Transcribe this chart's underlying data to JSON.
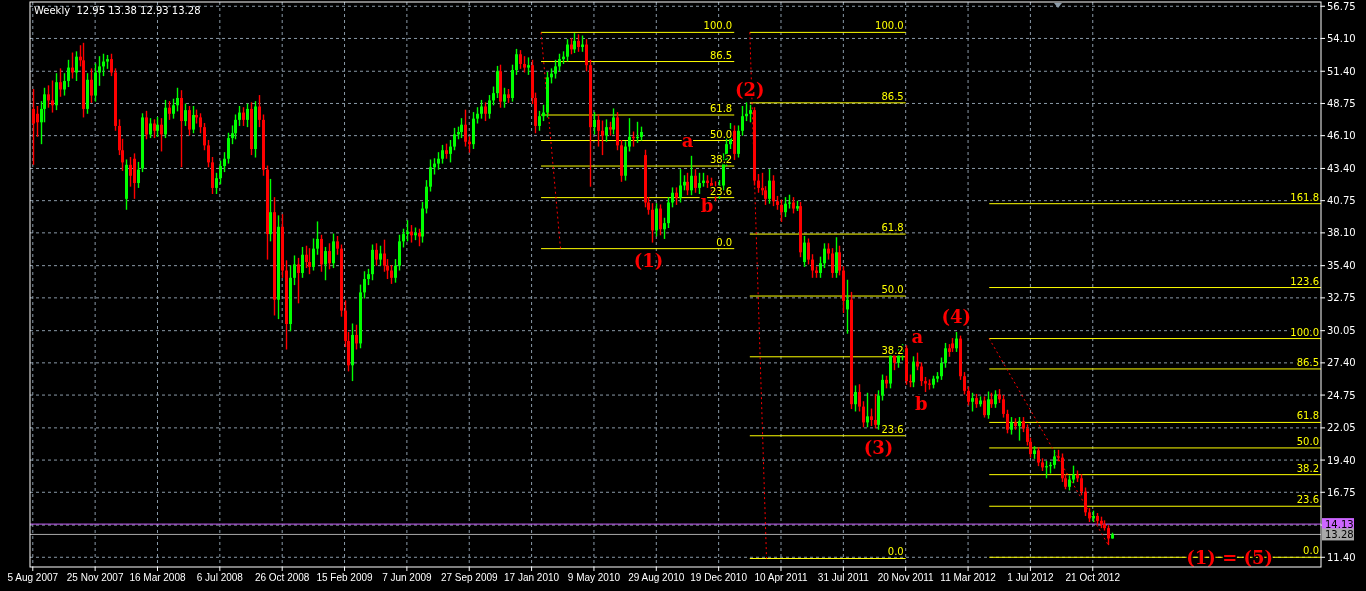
{
  "chart_data": {
    "type": "candlestick",
    "title": "Weekly  12.95 13.38 12.93 13.28",
    "x": [
      "2007-08-05",
      "2007-08-12",
      "2007-08-19",
      "2007-08-26",
      "2007-09-02",
      "2007-09-09",
      "2007-09-16",
      "2007-09-23",
      "2007-09-30",
      "2007-10-07",
      "2007-10-14",
      "2007-10-21",
      "2007-10-28",
      "2007-11-04",
      "2007-11-11",
      "2007-11-18",
      "2007-11-25",
      "2007-12-02",
      "2007-12-09",
      "2007-12-16",
      "2007-12-23",
      "2007-12-30",
      "2008-01-06",
      "2008-01-13",
      "2008-01-20",
      "2008-01-27",
      "2008-02-03",
      "2008-02-10",
      "2008-02-17",
      "2008-02-24",
      "2008-03-02",
      "2008-03-09",
      "2008-03-16",
      "2008-03-23",
      "2008-03-30",
      "2008-04-06",
      "2008-04-13",
      "2008-04-20",
      "2008-04-27",
      "2008-05-04",
      "2008-05-11",
      "2008-05-18",
      "2008-05-25",
      "2008-06-01",
      "2008-06-08",
      "2008-06-15",
      "2008-06-22",
      "2008-06-29",
      "2008-07-06",
      "2008-07-13",
      "2008-07-20",
      "2008-07-27",
      "2008-08-03",
      "2008-08-10",
      "2008-08-17",
      "2008-08-24",
      "2008-08-31",
      "2008-09-07",
      "2008-09-14",
      "2008-09-21",
      "2008-09-28",
      "2008-10-05",
      "2008-10-12",
      "2008-10-19",
      "2008-10-26",
      "2008-11-02",
      "2008-11-09",
      "2008-11-16",
      "2008-11-23",
      "2008-11-30",
      "2008-12-07",
      "2008-12-14",
      "2008-12-21",
      "2008-12-28",
      "2009-01-04",
      "2009-01-11",
      "2009-01-18",
      "2009-01-25",
      "2009-02-01",
      "2009-02-08",
      "2009-02-15",
      "2009-02-22",
      "2009-03-01",
      "2009-03-08",
      "2009-03-15",
      "2009-03-22",
      "2009-03-29",
      "2009-04-05",
      "2009-04-12",
      "2009-04-19",
      "2009-04-26",
      "2009-05-03",
      "2009-05-10",
      "2009-05-17",
      "2009-05-24",
      "2009-05-31",
      "2009-06-07",
      "2009-06-14",
      "2009-06-21",
      "2009-06-28",
      "2009-07-05",
      "2009-07-12",
      "2009-07-19",
      "2009-07-26",
      "2009-08-02",
      "2009-08-09",
      "2009-08-16",
      "2009-08-23",
      "2009-08-30",
      "2009-09-06",
      "2009-09-13",
      "2009-09-20",
      "2009-09-27",
      "2009-10-04",
      "2009-10-11",
      "2009-10-18",
      "2009-10-25",
      "2009-11-01",
      "2009-11-08",
      "2009-11-15",
      "2009-11-22",
      "2009-11-29",
      "2009-12-06",
      "2009-12-13",
      "2009-12-20",
      "2009-12-27",
      "2010-01-03",
      "2010-01-10",
      "2010-01-17",
      "2010-01-24",
      "2010-01-31",
      "2010-02-07",
      "2010-02-14",
      "2010-02-21",
      "2010-02-28",
      "2010-03-07",
      "2010-03-14",
      "2010-03-21",
      "2010-03-28",
      "2010-04-04",
      "2010-04-11",
      "2010-04-18",
      "2010-04-25",
      "2010-05-02",
      "2010-05-09",
      "2010-05-16",
      "2010-05-23",
      "2010-05-30",
      "2010-06-06",
      "2010-06-13",
      "2010-06-20",
      "2010-06-27",
      "2010-07-04",
      "2010-07-11",
      "2010-07-18",
      "2010-07-25",
      "2010-08-01",
      "2010-08-08",
      "2010-08-15",
      "2010-08-22",
      "2010-08-29",
      "2010-09-05",
      "2010-09-12",
      "2010-09-19",
      "2010-09-26",
      "2010-10-03",
      "2010-10-10",
      "2010-10-17",
      "2010-10-24",
      "2010-10-31",
      "2010-11-07",
      "2010-11-14",
      "2010-11-21",
      "2010-11-28",
      "2010-12-05",
      "2010-12-12",
      "2010-12-19",
      "2010-12-26",
      "2011-01-02",
      "2011-01-09",
      "2011-01-16",
      "2011-01-23",
      "2011-01-30",
      "2011-02-06",
      "2011-02-13",
      "2011-02-20",
      "2011-02-27",
      "2011-03-06",
      "2011-03-13",
      "2011-03-20",
      "2011-03-27",
      "2011-04-03",
      "2011-04-10",
      "2011-04-17",
      "2011-04-24",
      "2011-05-01",
      "2011-05-08",
      "2011-05-15",
      "2011-05-22",
      "2011-05-29",
      "2011-06-05",
      "2011-06-12",
      "2011-06-19",
      "2011-06-26",
      "2011-07-03",
      "2011-07-10",
      "2011-07-17",
      "2011-07-24",
      "2011-07-31",
      "2011-08-07",
      "2011-08-14",
      "2011-08-21",
      "2011-08-28",
      "2011-09-04",
      "2011-09-11",
      "2011-09-18",
      "2011-09-25",
      "2011-10-02",
      "2011-10-09",
      "2011-10-16",
      "2011-10-23",
      "2011-10-30",
      "2011-11-06",
      "2011-11-13",
      "2011-11-20",
      "2011-11-27",
      "2011-12-04",
      "2011-12-11",
      "2011-12-18",
      "2011-12-25",
      "2012-01-01",
      "2012-01-08",
      "2012-01-15",
      "2012-01-22",
      "2012-01-29",
      "2012-02-05",
      "2012-02-12",
      "2012-02-19",
      "2012-02-26",
      "2012-03-04",
      "2012-03-11",
      "2012-03-18",
      "2012-03-25",
      "2012-04-01",
      "2012-04-08",
      "2012-04-15",
      "2012-04-22",
      "2012-04-29",
      "2012-05-06",
      "2012-05-13",
      "2012-05-20",
      "2012-05-27",
      "2012-06-03",
      "2012-06-10",
      "2012-06-17",
      "2012-06-24",
      "2012-07-01",
      "2012-07-08",
      "2012-07-15",
      "2012-07-22",
      "2012-07-29",
      "2012-08-05",
      "2012-08-12",
      "2012-08-19",
      "2012-08-26",
      "2012-09-02",
      "2012-09-09",
      "2012-09-16",
      "2012-09-23",
      "2012-09-30",
      "2012-10-07",
      "2012-10-14",
      "2012-10-21",
      "2012-10-28",
      "2012-11-04",
      "2012-11-11",
      "2012-11-18",
      "2012-11-25"
    ],
    "ohlc": [
      [
        48.3,
        49.9,
        43.7,
        47.1
      ],
      [
        47.9,
        48.5,
        46.0,
        47.2
      ],
      [
        47.2,
        48.9,
        45.4,
        48.3
      ],
      [
        48.3,
        50.0,
        47.2,
        49.5
      ],
      [
        49.5,
        50.2,
        48.4,
        49.0
      ],
      [
        49.0,
        50.6,
        48.0,
        48.6
      ],
      [
        48.6,
        51.2,
        48.2,
        50.5
      ],
      [
        50.5,
        51.6,
        49.3,
        49.9
      ],
      [
        49.9,
        51.2,
        49.4,
        50.6
      ],
      [
        50.6,
        52.3,
        50.1,
        51.7
      ],
      [
        51.7,
        52.9,
        50.8,
        51.3
      ],
      [
        51.3,
        53.0,
        50.6,
        52.6
      ],
      [
        52.6,
        53.5,
        51.8,
        52.3
      ],
      [
        52.3,
        53.7,
        47.6,
        48.3
      ],
      [
        48.3,
        51.2,
        47.9,
        50.7
      ],
      [
        50.7,
        51.6,
        48.8,
        49.4
      ],
      [
        49.4,
        52.0,
        48.9,
        51.3
      ],
      [
        51.3,
        52.6,
        50.2,
        51.8
      ],
      [
        51.8,
        52.8,
        51.0,
        52.2
      ],
      [
        52.2,
        52.7,
        51.6,
        52.4
      ],
      [
        52.4,
        52.8,
        51.0,
        51.3
      ],
      [
        51.3,
        51.6,
        46.5,
        46.9
      ],
      [
        46.9,
        47.4,
        44.5,
        44.9
      ],
      [
        44.9,
        45.8,
        43.2,
        43.9
      ],
      [
        40.9,
        44.1,
        40.0,
        43.7
      ],
      [
        43.7,
        44.3,
        41.9,
        42.8
      ],
      [
        44.2,
        44.6,
        40.9,
        42.2
      ],
      [
        42.2,
        43.9,
        41.8,
        43.3
      ],
      [
        43.4,
        47.9,
        43.1,
        47.6
      ],
      [
        47.6,
        48.1,
        45.8,
        46.2
      ],
      [
        46.2,
        47.5,
        45.9,
        47.1
      ],
      [
        47.1,
        47.4,
        45.9,
        46.5
      ],
      [
        46.5,
        47.6,
        46.0,
        47.0
      ],
      [
        47.0,
        47.5,
        44.8,
        46.2
      ],
      [
        46.2,
        49.0,
        45.9,
        48.4
      ],
      [
        48.4,
        48.9,
        47.4,
        47.9
      ],
      [
        47.9,
        49.1,
        47.5,
        48.6
      ],
      [
        48.6,
        50.0,
        48.1,
        49.2
      ],
      [
        49.2,
        49.8,
        43.5,
        47.3
      ],
      [
        47.3,
        48.7,
        46.9,
        48.2
      ],
      [
        48.2,
        48.5,
        46.1,
        46.6
      ],
      [
        46.6,
        48.5,
        46.3,
        47.8
      ],
      [
        47.8,
        48.2,
        47.1,
        47.6
      ],
      [
        47.6,
        47.9,
        46.3,
        46.8
      ],
      [
        46.8,
        47.1,
        44.9,
        45.3
      ],
      [
        45.3,
        45.7,
        43.5,
        43.9
      ],
      [
        43.9,
        44.3,
        41.3,
        41.8
      ],
      [
        41.8,
        43.0,
        41.3,
        42.6
      ],
      [
        42.6,
        44.0,
        42.1,
        43.6
      ],
      [
        43.6,
        44.7,
        43.1,
        44.2
      ],
      [
        44.2,
        46.3,
        43.8,
        45.9
      ],
      [
        45.9,
        46.9,
        45.4,
        46.3
      ],
      [
        46.3,
        47.8,
        45.8,
        47.4
      ],
      [
        47.4,
        48.5,
        46.9,
        48.0
      ],
      [
        48.0,
        48.4,
        46.9,
        47.4
      ],
      [
        47.4,
        48.7,
        46.8,
        48.3
      ],
      [
        48.3,
        48.8,
        44.5,
        45.0
      ],
      [
        45.0,
        48.9,
        44.3,
        48.5
      ],
      [
        48.5,
        49.4,
        46.8,
        47.4
      ],
      [
        47.4,
        47.8,
        42.8,
        43.3
      ],
      [
        43.3,
        43.6,
        35.9,
        38.0
      ],
      [
        38.0,
        42.5,
        37.4,
        39.8
      ],
      [
        39.8,
        41.0,
        31.3,
        32.6
      ],
      [
        32.6,
        39.5,
        31.0,
        38.6
      ],
      [
        38.6,
        39.6,
        34.4,
        35.0
      ],
      [
        35.0,
        35.8,
        28.5,
        30.6
      ],
      [
        30.6,
        35.4,
        30.0,
        34.4
      ],
      [
        34.4,
        36.2,
        33.8,
        35.5
      ],
      [
        35.5,
        36.0,
        32.3,
        34.8
      ],
      [
        34.8,
        36.9,
        34.4,
        36.3
      ],
      [
        36.3,
        37.0,
        35.2,
        35.7
      ],
      [
        35.7,
        36.8,
        34.7,
        35.3
      ],
      [
        35.3,
        37.6,
        35.0,
        36.8
      ],
      [
        36.8,
        39.0,
        36.3,
        37.6
      ],
      [
        37.6,
        37.9,
        34.9,
        35.5
      ],
      [
        35.5,
        36.9,
        34.2,
        36.6
      ],
      [
        36.6,
        37.2,
        35.1,
        35.6
      ],
      [
        35.6,
        38.0,
        35.2,
        37.4
      ],
      [
        37.4,
        37.8,
        36.3,
        36.8
      ],
      [
        36.8,
        37.1,
        31.2,
        31.7
      ],
      [
        31.7,
        32.5,
        28.7,
        29.2
      ],
      [
        29.2,
        29.9,
        26.7,
        27.2
      ],
      [
        27.2,
        30.6,
        25.9,
        29.7
      ],
      [
        29.7,
        30.5,
        28.5,
        29.0
      ],
      [
        29.0,
        33.8,
        28.6,
        33.2
      ],
      [
        33.2,
        34.9,
        32.7,
        34.3
      ],
      [
        34.3,
        35.1,
        33.8,
        34.7
      ],
      [
        34.7,
        37.1,
        34.2,
        36.7
      ],
      [
        36.7,
        37.2,
        35.4,
        35.9
      ],
      [
        35.9,
        37.0,
        35.4,
        36.4
      ],
      [
        36.4,
        37.5,
        34.9,
        35.4
      ],
      [
        35.4,
        35.9,
        34.3,
        35.0
      ],
      [
        35.0,
        35.4,
        33.9,
        34.4
      ],
      [
        34.4,
        35.9,
        34.0,
        35.4
      ],
      [
        35.4,
        37.9,
        35.0,
        37.4
      ],
      [
        37.4,
        38.4,
        36.9,
        38.0
      ],
      [
        38.0,
        39.1,
        37.4,
        38.2
      ],
      [
        38.2,
        38.7,
        37.3,
        37.9
      ],
      [
        37.9,
        38.5,
        37.5,
        38.1
      ],
      [
        38.1,
        38.4,
        37.0,
        37.8
      ],
      [
        37.8,
        40.6,
        37.3,
        40.1
      ],
      [
        40.1,
        42.4,
        39.7,
        41.9
      ],
      [
        41.9,
        44.1,
        41.5,
        43.5
      ],
      [
        43.5,
        44.2,
        42.9,
        43.8
      ],
      [
        43.8,
        44.7,
        43.3,
        44.2
      ],
      [
        44.2,
        45.3,
        43.8,
        44.9
      ],
      [
        44.9,
        45.4,
        44.2,
        44.6
      ],
      [
        44.6,
        45.7,
        43.9,
        45.2
      ],
      [
        45.2,
        46.7,
        44.9,
        46.2
      ],
      [
        46.2,
        46.8,
        45.8,
        46.4
      ],
      [
        46.4,
        47.5,
        45.9,
        47.0
      ],
      [
        47.0,
        48.2,
        45.2,
        45.6
      ],
      [
        45.6,
        46.0,
        44.7,
        45.4
      ],
      [
        45.4,
        48.0,
        45.0,
        47.5
      ],
      [
        47.5,
        48.4,
        47.1,
        47.9
      ],
      [
        47.9,
        49.0,
        47.5,
        48.5
      ],
      [
        48.5,
        48.8,
        47.3,
        47.9
      ],
      [
        47.9,
        49.4,
        47.5,
        49.0
      ],
      [
        49.0,
        50.1,
        48.6,
        49.6
      ],
      [
        49.6,
        51.8,
        49.2,
        51.4
      ],
      [
        51.4,
        51.9,
        48.4,
        48.9
      ],
      [
        48.9,
        50.0,
        48.4,
        49.5
      ],
      [
        49.5,
        49.9,
        48.8,
        49.2
      ],
      [
        49.2,
        51.9,
        48.9,
        51.5
      ],
      [
        51.5,
        53.2,
        51.1,
        52.8
      ],
      [
        52.8,
        53.1,
        51.6,
        52.0
      ],
      [
        52.0,
        52.6,
        51.3,
        51.7
      ],
      [
        51.7,
        52.5,
        51.1,
        51.9
      ],
      [
        51.9,
        52.3,
        48.7,
        49.2
      ],
      [
        49.2,
        49.6,
        46.3,
        46.9
      ],
      [
        46.9,
        48.1,
        46.5,
        47.7
      ],
      [
        47.7,
        48.6,
        47.3,
        48.0
      ],
      [
        48.0,
        51.3,
        47.6,
        50.9
      ],
      [
        50.9,
        51.6,
        50.4,
        51.2
      ],
      [
        51.2,
        52.3,
        50.8,
        51.8
      ],
      [
        51.8,
        52.8,
        51.4,
        52.4
      ],
      [
        52.4,
        53.0,
        52.0,
        52.6
      ],
      [
        52.6,
        54.0,
        52.2,
        53.6
      ],
      [
        53.6,
        54.1,
        52.8,
        53.2
      ],
      [
        53.2,
        54.5,
        52.9,
        53.9
      ],
      [
        53.9,
        54.4,
        53.0,
        53.4
      ],
      [
        53.4,
        54.3,
        53.0,
        53.6
      ],
      [
        53.6,
        54.0,
        51.4,
        51.9
      ],
      [
        51.9,
        52.3,
        41.9,
        46.8
      ],
      [
        46.8,
        48.0,
        46.2,
        47.4
      ],
      [
        47.4,
        47.8,
        45.2,
        46.5
      ],
      [
        46.5,
        47.3,
        44.5,
        46.1
      ],
      [
        46.1,
        47.4,
        45.6,
        46.8
      ],
      [
        46.8,
        47.2,
        46.1,
        46.6
      ],
      [
        46.6,
        48.3,
        46.2,
        47.6
      ],
      [
        47.6,
        48.0,
        44.9,
        45.3
      ],
      [
        45.3,
        45.7,
        42.3,
        42.8
      ],
      [
        42.8,
        45.6,
        42.4,
        45.2
      ],
      [
        45.2,
        47.5,
        44.8,
        46.0
      ],
      [
        46.0,
        46.4,
        45.2,
        45.9
      ],
      [
        45.9,
        47.2,
        45.5,
        46.0
      ],
      [
        46.0,
        46.8,
        45.7,
        46.4
      ],
      [
        44.5,
        44.9,
        40.2,
        40.6
      ],
      [
        40.6,
        41.0,
        39.6,
        40.0
      ],
      [
        40.0,
        40.5,
        37.3,
        38.3
      ],
      [
        38.3,
        40.5,
        37.8,
        40.1
      ],
      [
        40.1,
        40.4,
        37.9,
        38.4
      ],
      [
        38.4,
        39.3,
        37.6,
        38.9
      ],
      [
        38.9,
        41.0,
        38.5,
        40.6
      ],
      [
        40.6,
        41.8,
        40.2,
        41.4
      ],
      [
        41.4,
        41.8,
        40.4,
        41.0
      ],
      [
        41.0,
        43.3,
        40.6,
        42.0
      ],
      [
        42.0,
        42.8,
        41.6,
        42.3
      ],
      [
        42.3,
        43.0,
        41.2,
        41.6
      ],
      [
        41.6,
        44.4,
        41.2,
        42.8
      ],
      [
        42.8,
        43.3,
        41.4,
        41.8
      ],
      [
        41.8,
        43.0,
        41.3,
        42.2
      ],
      [
        42.2,
        43.0,
        41.9,
        42.4
      ],
      [
        42.4,
        42.8,
        41.8,
        42.2
      ],
      [
        42.2,
        42.6,
        41.4,
        41.8
      ],
      [
        41.8,
        42.3,
        40.7,
        41.3
      ],
      [
        41.3,
        42.4,
        40.9,
        42.0
      ],
      [
        42.0,
        44.6,
        41.6,
        44.0
      ],
      [
        44.0,
        45.9,
        43.6,
        45.4
      ],
      [
        45.4,
        47.1,
        45.0,
        46.5
      ],
      [
        46.5,
        46.9,
        44.1,
        44.6
      ],
      [
        44.6,
        46.9,
        44.3,
        46.5
      ],
      [
        46.5,
        48.5,
        46.1,
        47.7
      ],
      [
        47.7,
        48.8,
        47.3,
        47.9
      ],
      [
        47.9,
        48.6,
        47.2,
        48.2
      ],
      [
        48.2,
        48.4,
        42.0,
        42.4
      ],
      [
        42.4,
        42.9,
        41.4,
        41.8
      ],
      [
        41.8,
        43.0,
        41.2,
        41.6
      ],
      [
        41.6,
        41.9,
        40.4,
        40.9
      ],
      [
        40.9,
        43.3,
        40.5,
        42.4
      ],
      [
        42.4,
        42.8,
        40.3,
        40.7
      ],
      [
        40.7,
        41.1,
        40.0,
        40.4
      ],
      [
        40.4,
        40.8,
        39.0,
        39.8
      ],
      [
        39.8,
        41.0,
        39.4,
        40.5
      ],
      [
        40.5,
        41.2,
        40.1,
        40.6
      ],
      [
        40.6,
        41.0,
        39.7,
        40.1
      ],
      [
        40.1,
        40.7,
        39.9,
        40.3
      ],
      [
        40.3,
        40.6,
        36.1,
        36.5
      ],
      [
        35.7,
        37.8,
        35.3,
        37.3
      ],
      [
        37.3,
        37.6,
        35.5,
        35.9
      ],
      [
        35.9,
        36.3,
        34.4,
        35.0
      ],
      [
        35.0,
        35.3,
        34.4,
        34.8
      ],
      [
        34.8,
        36.1,
        34.4,
        35.6
      ],
      [
        35.6,
        37.2,
        35.2,
        36.8
      ],
      [
        36.8,
        37.2,
        35.9,
        36.4
      ],
      [
        36.4,
        36.8,
        34.4,
        34.8
      ],
      [
        34.8,
        37.7,
        34.4,
        36.5
      ],
      [
        36.5,
        37.0,
        34.6,
        35.0
      ],
      [
        35.0,
        35.3,
        31.5,
        32.5
      ],
      [
        31.8,
        34.2,
        29.8,
        32.6
      ],
      [
        32.6,
        33.2,
        23.6,
        24.0
      ],
      [
        24.0,
        25.5,
        23.4,
        25.0
      ],
      [
        25.0,
        25.6,
        23.4,
        23.8
      ],
      [
        23.8,
        24.2,
        22.1,
        22.5
      ],
      [
        22.5,
        24.9,
        22.1,
        23.0
      ],
      [
        23.0,
        23.6,
        22.2,
        22.7
      ],
      [
        22.7,
        24.8,
        22.0,
        22.3
      ],
      [
        22.3,
        25.1,
        21.9,
        24.7
      ],
      [
        24.7,
        26.4,
        24.3,
        26.0
      ],
      [
        26.0,
        26.3,
        25.3,
        25.7
      ],
      [
        25.7,
        28.0,
        25.3,
        28.0
      ],
      [
        28.0,
        28.0,
        26.8,
        27.4
      ],
      [
        27.4,
        28.5,
        27.0,
        28.1
      ],
      [
        28.1,
        28.9,
        27.6,
        28.6
      ],
      [
        28.6,
        28.8,
        25.6,
        25.9
      ],
      [
        25.9,
        26.4,
        25.4,
        25.8
      ],
      [
        25.8,
        27.9,
        25.4,
        27.5
      ],
      [
        27.5,
        28.2,
        26.8,
        27.1
      ],
      [
        27.1,
        27.4,
        25.5,
        25.9
      ],
      [
        25.9,
        26.2,
        25.0,
        25.7
      ],
      [
        25.7,
        26.0,
        25.2,
        25.6
      ],
      [
        25.6,
        26.3,
        25.3,
        26.1
      ],
      [
        26.1,
        26.6,
        25.8,
        26.3
      ],
      [
        26.3,
        27.8,
        26.0,
        27.4
      ],
      [
        27.4,
        29.0,
        27.0,
        28.6
      ],
      [
        28.6,
        28.9,
        27.9,
        28.3
      ],
      [
        29.0,
        29.4,
        28.3,
        28.6
      ],
      [
        28.6,
        29.9,
        28.3,
        29.4
      ],
      [
        29.4,
        29.6,
        26.0,
        26.3
      ],
      [
        26.3,
        26.6,
        24.8,
        25.1
      ],
      [
        25.1,
        25.4,
        23.9,
        24.2
      ],
      [
        24.2,
        24.9,
        23.4,
        24.5
      ],
      [
        24.5,
        24.8,
        23.7,
        24.0
      ],
      [
        24.0,
        24.6,
        23.8,
        24.3
      ],
      [
        24.3,
        24.6,
        22.9,
        23.1
      ],
      [
        23.1,
        25.0,
        22.8,
        24.4
      ],
      [
        24.4,
        24.9,
        23.7,
        24.0
      ],
      [
        24.0,
        25.1,
        23.7,
        24.8
      ],
      [
        24.8,
        25.2,
        24.1,
        24.4
      ],
      [
        24.4,
        24.7,
        22.9,
        23.2
      ],
      [
        23.2,
        23.5,
        21.6,
        21.9
      ],
      [
        21.9,
        22.9,
        21.5,
        22.5
      ],
      [
        22.5,
        22.8,
        21.9,
        22.2
      ],
      [
        22.2,
        22.9,
        21.0,
        22.6
      ],
      [
        22.6,
        22.9,
        21.7,
        22.0
      ],
      [
        22.0,
        22.3,
        20.6,
        20.9
      ],
      [
        20.9,
        21.2,
        19.6,
        19.9
      ],
      [
        19.9,
        20.5,
        19.5,
        20.2
      ],
      [
        20.2,
        20.4,
        18.9,
        19.2
      ],
      [
        19.2,
        19.5,
        18.5,
        18.8
      ],
      [
        18.8,
        19.3,
        17.9,
        18.9
      ],
      [
        18.9,
        19.2,
        18.3,
        19.0
      ],
      [
        19.0,
        20.2,
        18.7,
        19.7
      ],
      [
        19.7,
        20.2,
        19.3,
        19.6
      ],
      [
        19.6,
        19.9,
        17.6,
        17.9
      ],
      [
        17.9,
        18.2,
        17.0,
        17.2
      ],
      [
        17.2,
        18.1,
        16.9,
        17.8
      ],
      [
        17.8,
        18.9,
        17.5,
        18.2
      ],
      [
        18.2,
        18.5,
        17.6,
        17.9
      ],
      [
        17.9,
        18.2,
        16.5,
        16.8
      ],
      [
        16.8,
        17.1,
        14.8,
        15.1
      ],
      [
        15.1,
        15.4,
        14.3,
        14.6
      ],
      [
        14.6,
        15.2,
        14.3,
        14.8
      ],
      [
        14.8,
        15.0,
        14.1,
        14.4
      ],
      [
        14.4,
        14.7,
        13.8,
        14.1
      ],
      [
        14.1,
        14.4,
        13.6,
        13.8
      ],
      [
        13.8,
        14.0,
        12.4,
        12.95
      ],
      [
        12.95,
        13.38,
        12.93,
        13.28
      ]
    ],
    "colors": [
      "#ff0000",
      "#ff0000",
      "#00ff00",
      "#00ff00",
      "#ff0000",
      "#ff0000",
      "#00ff00",
      "#ff0000",
      "#00ff00",
      "#00ff00",
      "#ff0000",
      "#00ff00",
      "#ff0000",
      "#ff0000",
      "#00ff00",
      "#ff0000",
      "#00ff00",
      "#00ff00",
      "#00ff00",
      "#00ff00",
      "#ff0000",
      "#ff0000",
      "#ff0000",
      "#ff0000",
      "#00ff00",
      "#ff0000",
      "#ff0000",
      "#00ff00",
      "#00ff00",
      "#ff0000",
      "#00ff00",
      "#ff0000",
      "#00ff00",
      "#ff0000",
      "#00ff00",
      "#ff0000",
      "#00ff00",
      "#00ff00",
      "#ff0000",
      "#00ff00",
      "#ff0000",
      "#00ff00",
      "#ff0000",
      "#ff0000",
      "#ff0000",
      "#ff0000",
      "#ff0000",
      "#00ff00",
      "#00ff00",
      "#00ff00",
      "#00ff00",
      "#00ff00",
      "#00ff00",
      "#00ff00",
      "#ff0000",
      "#00ff00",
      "#ff0000",
      "#00ff00",
      "#ff0000",
      "#ff0000",
      "#ff0000",
      "#00ff00",
      "#ff0000",
      "#00ff00",
      "#ff0000",
      "#ff0000",
      "#00ff00",
      "#00ff00",
      "#ff0000",
      "#00ff00",
      "#ff0000",
      "#ff0000",
      "#00ff00",
      "#00ff00",
      "#ff0000",
      "#00ff00",
      "#ff0000",
      "#00ff00",
      "#ff0000",
      "#ff0000",
      "#ff0000",
      "#ff0000",
      "#00ff00",
      "#ff0000",
      "#00ff00",
      "#00ff00",
      "#00ff00",
      "#00ff00",
      "#ff0000",
      "#00ff00",
      "#ff0000",
      "#ff0000",
      "#ff0000",
      "#00ff00",
      "#00ff00",
      "#00ff00",
      "#00ff00",
      "#ff0000",
      "#00ff00",
      "#ff0000",
      "#00ff00",
      "#00ff00",
      "#00ff00",
      "#00ff00",
      "#00ff00",
      "#00ff00",
      "#ff0000",
      "#00ff00",
      "#00ff00",
      "#00ff00",
      "#00ff00",
      "#ff0000",
      "#ff0000",
      "#00ff00",
      "#00ff00",
      "#00ff00",
      "#ff0000",
      "#00ff00",
      "#00ff00",
      "#00ff00",
      "#ff0000",
      "#00ff00",
      "#ff0000",
      "#00ff00",
      "#00ff00",
      "#ff0000",
      "#ff0000",
      "#00ff00",
      "#ff0000",
      "#ff0000",
      "#00ff00",
      "#00ff00",
      "#00ff00",
      "#00ff00",
      "#00ff00",
      "#00ff00",
      "#00ff00",
      "#00ff00",
      "#ff0000",
      "#00ff00",
      "#ff0000",
      "#00ff00",
      "#ff0000",
      "#ff0000",
      "#00ff00",
      "#ff0000",
      "#ff0000",
      "#00ff00",
      "#ff0000",
      "#00ff00",
      "#ff0000",
      "#ff0000",
      "#00ff00",
      "#00ff00",
      "#ff0000",
      "#00ff00",
      "#00ff00",
      "#ff0000",
      "#ff0000",
      "#ff0000",
      "#00ff00",
      "#ff0000",
      "#00ff00",
      "#00ff00",
      "#00ff00",
      "#ff0000",
      "#00ff00",
      "#00ff00",
      "#ff0000",
      "#00ff00",
      "#ff0000",
      "#00ff00",
      "#00ff00",
      "#ff0000",
      "#ff0000",
      "#ff0000",
      "#00ff00",
      "#00ff00",
      "#00ff00",
      "#00ff00",
      "#ff0000",
      "#00ff00",
      "#00ff00",
      "#00ff00",
      "#00ff00",
      "#ff0000",
      "#ff0000",
      "#ff0000",
      "#ff0000",
      "#00ff00",
      "#ff0000",
      "#ff0000",
      "#ff0000",
      "#00ff00",
      "#00ff00",
      "#ff0000",
      "#00ff00",
      "#ff0000",
      "#00ff00",
      "#ff0000",
      "#ff0000",
      "#ff0000",
      "#00ff00",
      "#00ff00",
      "#ff0000",
      "#ff0000",
      "#00ff00",
      "#ff0000",
      "#ff0000",
      "#00ff00",
      "#ff0000",
      "#00ff00",
      "#ff0000",
      "#ff0000",
      "#00ff00",
      "#ff0000",
      "#ff0000",
      "#00ff00",
      "#00ff00",
      "#ff0000",
      "#00ff00",
      "#ff0000",
      "#00ff00",
      "#00ff00",
      "#ff0000",
      "#ff0000",
      "#00ff00",
      "#ff0000",
      "#ff0000",
      "#ff0000",
      "#ff0000",
      "#00ff00",
      "#00ff00",
      "#00ff00",
      "#00ff00",
      "#ff0000",
      "#ff0000",
      "#00ff00",
      "#ff0000",
      "#ff0000",
      "#ff0000",
      "#00ff00",
      "#ff0000",
      "#00ff00",
      "#ff0000",
      "#00ff00",
      "#ff0000",
      "#00ff00",
      "#ff0000",
      "#ff0000",
      "#ff0000",
      "#00ff00",
      "#ff0000",
      "#00ff00",
      "#ff0000",
      "#ff0000",
      "#ff0000",
      "#00ff00",
      "#ff0000",
      "#ff0000",
      "#00ff00",
      "#00ff00",
      "#00ff00",
      "#ff0000",
      "#ff0000",
      "#ff0000",
      "#00ff00",
      "#00ff00",
      "#ff0000",
      "#ff0000",
      "#ff0000",
      "#ff0000",
      "#00ff00",
      "#ff0000",
      "#ff0000",
      "#ff0000",
      "#ff0000",
      "#00ff00"
    ],
    "xlim": [
      "2007-07-31",
      "2013-12-05"
    ],
    "xticks": [
      {
        "value": "2007-08-05",
        "label": "5 Aug 2007"
      },
      {
        "value": "2007-11-25",
        "label": "25 Nov 2007"
      },
      {
        "value": "2008-03-16",
        "label": "16 Mar 2008"
      },
      {
        "value": "2008-07-06",
        "label": "6 Jul 2008"
      },
      {
        "value": "2008-10-26",
        "label": "26 Oct 2008"
      },
      {
        "value": "2009-02-15",
        "label": "15 Feb 2009"
      },
      {
        "value": "2009-06-07",
        "label": "7 Jun 2009"
      },
      {
        "value": "2009-09-27",
        "label": "27 Sep 2009"
      },
      {
        "value": "2010-01-17",
        "label": "17 Jan 2010"
      },
      {
        "value": "2010-05-09",
        "label": "9 May 2010"
      },
      {
        "value": "2010-08-29",
        "label": "29 Aug 2010"
      },
      {
        "value": "2010-12-19",
        "label": "19 Dec 2010"
      },
      {
        "value": "2011-04-10",
        "label": "10 Apr 2011"
      },
      {
        "value": "2011-07-31",
        "label": "31 Jul 2011"
      },
      {
        "value": "2011-11-20",
        "label": "20 Nov 2011"
      },
      {
        "value": "2012-03-11",
        "label": "11 Mar 2012"
      },
      {
        "value": "2012-07-01",
        "label": "1 Jul 2012"
      },
      {
        "value": "2012-10-21",
        "label": "21 Oct 2012"
      }
    ],
    "ylim": [
      10.6,
      57.1
    ],
    "yticks": [
      56.75,
      {
        "value": 54.1,
        "label": "54.10"
      },
      {
        "value": 51.4,
        "label": "51.40"
      },
      48.75,
      {
        "value": 46.1,
        "label": "46.10"
      },
      {
        "value": 43.4,
        "label": "43.40"
      },
      40.75,
      {
        "value": 38.1,
        "label": "38.10"
      },
      {
        "value": 35.4,
        "label": "35.40"
      },
      32.75,
      30.05,
      {
        "value": 27.4,
        "label": "27.40"
      },
      24.75,
      22.05,
      {
        "value": 19.4,
        "label": "19.40"
      },
      16.75,
      {
        "value": 14.05,
        "label": null
      },
      {
        "value": 11.4,
        "label": "11.40"
      }
    ],
    "grid": true,
    "ref_lines": [
      {
        "axis": "y",
        "value": 14.13,
        "label": "14.13",
        "color": "#cc66ff"
      },
      {
        "axis": "y",
        "value": 13.28,
        "label": "13.28",
        "color": "#a8a8a8"
      }
    ],
    "annotations": [
      {
        "text": "(1)",
        "x": "2010-08-15",
        "y": 37.3
      },
      {
        "text": "(2)",
        "x": "2011-02-13",
        "y": 48.6
      },
      {
        "text": "(3)",
        "x": "2011-10-02",
        "y": 21.9
      },
      {
        "text": "(4)",
        "x": "2012-02-19",
        "y": 29.9
      },
      {
        "text": "(1) = (5)",
        "x": "2013-06-24",
        "y": 11.4
      },
      {
        "text": "a",
        "x": "2010-10-24",
        "y": 44.4
      },
      {
        "text": "b",
        "x": "2010-11-28",
        "y": 41.8
      },
      {
        "text": "a",
        "x": "2011-12-11",
        "y": 28.2
      },
      {
        "text": "b",
        "x": "2011-12-18",
        "y": 25.5
      }
    ],
    "series": [
      {
        "type": "line",
        "name": "100.0",
        "color": "#ffff00",
        "x": [
          "2010-02-03",
          "2011-01-16"
        ],
        "values": [
          54.6,
          54.6
        ]
      },
      {
        "type": "line",
        "name": "86.5",
        "color": "#ffff00",
        "x": [
          "2010-02-03",
          "2011-01-16"
        ],
        "values": [
          52.2,
          52.2
        ]
      },
      {
        "type": "line",
        "name": "61.8",
        "color": "#ffff00",
        "x": [
          "2010-02-03",
          "2011-01-16"
        ],
        "values": [
          47.8,
          47.8
        ]
      },
      {
        "type": "line",
        "name": "50.0",
        "color": "#ffff00",
        "x": [
          "2010-02-03",
          "2011-01-16"
        ],
        "values": [
          45.7,
          45.7
        ]
      },
      {
        "type": "line",
        "name": "38.2",
        "color": "#ffff00",
        "x": [
          "2010-02-03",
          "2011-01-16"
        ],
        "values": [
          43.6,
          43.6
        ]
      },
      {
        "type": "line",
        "name": "23.6",
        "color": "#ffff00",
        "x": [
          "2010-02-03",
          "2011-01-16"
        ],
        "values": [
          41.0,
          41.0
        ]
      },
      {
        "type": "line",
        "name": "0.0",
        "color": "#ffff00",
        "x": [
          "2010-02-03",
          "2011-01-16"
        ],
        "values": [
          36.8,
          36.8
        ]
      },
      {
        "type": "line",
        "name": "100.0",
        "color": "#ffff00",
        "x": [
          "2011-02-13",
          "2011-11-20"
        ],
        "values": [
          54.6,
          54.6
        ]
      },
      {
        "type": "line",
        "name": "86.5",
        "color": "#ffff00",
        "x": [
          "2011-02-13",
          "2011-11-20"
        ],
        "values": [
          48.8,
          48.8
        ]
      },
      {
        "type": "line",
        "name": "61.8",
        "color": "#ffff00",
        "x": [
          "2011-02-13",
          "2011-11-20"
        ],
        "values": [
          38.0,
          38.0
        ]
      },
      {
        "type": "line",
        "name": "50.0",
        "color": "#ffff00",
        "x": [
          "2011-02-13",
          "2011-11-20"
        ],
        "values": [
          32.9,
          32.9
        ]
      },
      {
        "type": "line",
        "name": "38.2",
        "color": "#ffff00",
        "x": [
          "2011-02-13",
          "2011-11-20"
        ],
        "values": [
          27.9,
          27.9
        ]
      },
      {
        "type": "line",
        "name": "23.6",
        "color": "#ffff00",
        "x": [
          "2011-02-13",
          "2011-11-20"
        ],
        "values": [
          21.4,
          21.4
        ]
      },
      {
        "type": "line",
        "name": "0.0",
        "color": "#ffff00",
        "x": [
          "2011-02-13",
          "2011-11-20"
        ],
        "values": [
          11.3,
          11.3
        ]
      },
      {
        "type": "line",
        "name": "161.8",
        "color": "#ffff00",
        "x": [
          "2012-04-18",
          "2013-12-05"
        ],
        "values": [
          40.5,
          40.5
        ]
      },
      {
        "type": "line",
        "name": "123.6",
        "color": "#ffff00",
        "x": [
          "2012-04-18",
          "2013-12-05"
        ],
        "values": [
          33.6,
          33.6
        ]
      },
      {
        "type": "line",
        "name": "100.0",
        "color": "#ffff00",
        "x": [
          "2012-04-18",
          "2013-12-05"
        ],
        "values": [
          29.4,
          29.4
        ]
      },
      {
        "type": "line",
        "name": "86.5",
        "color": "#ffff00",
        "x": [
          "2012-04-18",
          "2013-12-05"
        ],
        "values": [
          26.9,
          26.9
        ]
      },
      {
        "type": "line",
        "name": "61.8",
        "color": "#ffff00",
        "x": [
          "2012-04-18",
          "2013-12-05"
        ],
        "values": [
          22.5,
          22.5
        ]
      },
      {
        "type": "line",
        "name": "50.0",
        "color": "#ffff00",
        "x": [
          "2012-04-18",
          "2013-12-05"
        ],
        "values": [
          20.4,
          20.4
        ]
      },
      {
        "type": "line",
        "name": "38.2",
        "color": "#ffff00",
        "x": [
          "2012-04-18",
          "2013-12-05"
        ],
        "values": [
          18.2,
          18.2
        ]
      },
      {
        "type": "line",
        "name": "23.6",
        "color": "#ffff00",
        "x": [
          "2012-04-18",
          "2013-12-05"
        ],
        "values": [
          15.6,
          15.6
        ]
      },
      {
        "type": "line",
        "name": "0.0",
        "color": "#ffff00",
        "x": [
          "2012-04-18",
          "2013-12-05"
        ],
        "values": [
          11.4,
          11.4
        ]
      },
      {
        "type": "line",
        "color": "#ff0000",
        "line_style": "dotted",
        "x": [
          "2010-02-03",
          "2010-03-10"
        ],
        "values": [
          54.6,
          36.8
        ]
      },
      {
        "type": "line",
        "color": "#ff0000",
        "line_style": "dotted",
        "x": [
          "2011-02-13",
          "2011-03-15"
        ],
        "values": [
          54.6,
          11.3
        ]
      },
      {
        "type": "line",
        "color": "#ff0000",
        "line_style": "dotted",
        "x": [
          "2012-04-18",
          "2012-11-18"
        ],
        "values": [
          29.4,
          12.4
        ]
      }
    ]
  }
}
